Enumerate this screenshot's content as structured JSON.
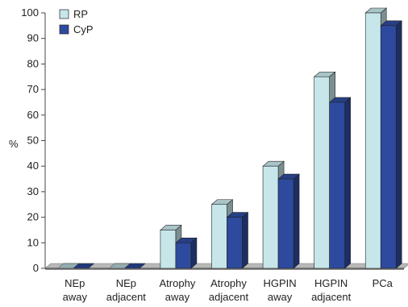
{
  "chart_data": {
    "type": "bar",
    "style": "3d-clustered",
    "categories": [
      [
        "NEp",
        "away"
      ],
      [
        "NEp",
        "adjacent"
      ],
      [
        "Atrophy",
        "away"
      ],
      [
        "Atrophy",
        "adjacent"
      ],
      [
        "HGPIN",
        "away"
      ],
      [
        "HGPIN",
        "adjacent"
      ],
      [
        "PCa"
      ]
    ],
    "series": [
      {
        "name": "RP",
        "color": "#c7e6ea",
        "values": [
          0,
          0,
          15,
          25,
          40,
          75,
          100
        ]
      },
      {
        "name": "CyP",
        "color": "#2e4a9e",
        "values": [
          0,
          0,
          10,
          20,
          35,
          65,
          95
        ]
      }
    ],
    "ylabel": "%",
    "ylim": [
      0,
      100
    ],
    "yticks": [
      0,
      10,
      20,
      30,
      40,
      50,
      60,
      70,
      80,
      90,
      100
    ],
    "grid": false,
    "legend_position": "top-left"
  }
}
